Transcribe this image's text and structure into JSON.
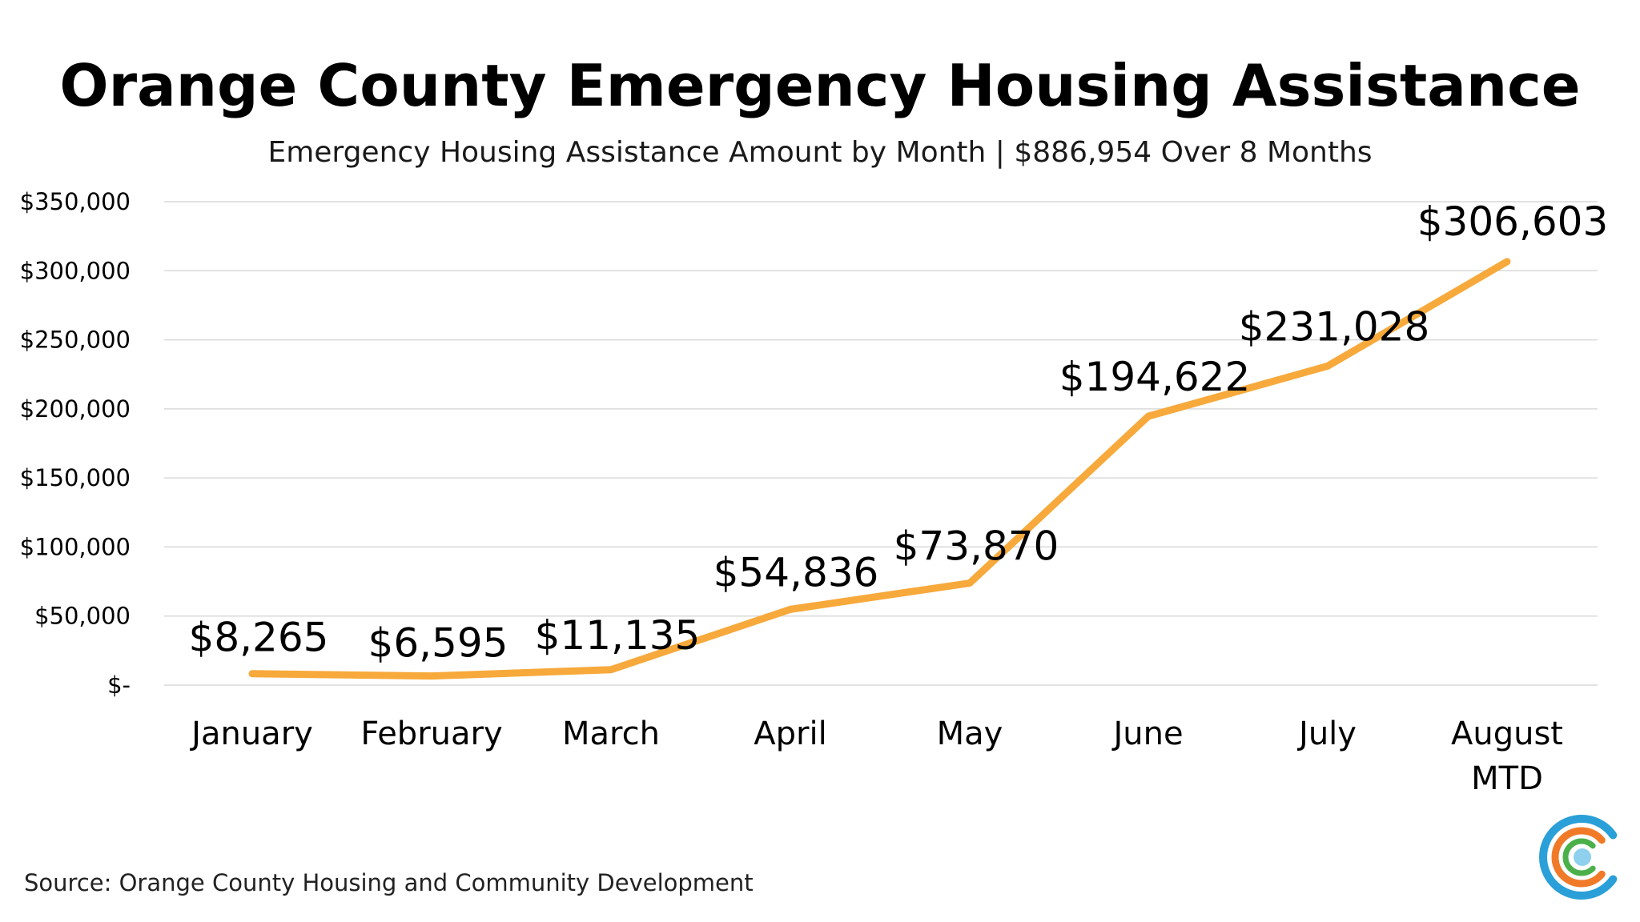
{
  "colors": {
    "line": "#f7a93b",
    "grid": "#d9d9d9",
    "logo_outer": "#2a9fd8",
    "logo_middle": "#f07a28",
    "logo_inner": "#4bb04a",
    "logo_dot": "#8fd0ee"
  },
  "footer": {
    "source": "Source: Orange County Housing and Community Development"
  },
  "logo": {
    "icon": "circular-c-logo-icon"
  },
  "chart_data": {
    "type": "line",
    "title": "Orange County Emergency Housing Assistance",
    "subtitle": "Emergency Housing Assistance Amount by Month | $886,954 Over 8 Months",
    "categories": [
      [
        "January"
      ],
      [
        "February"
      ],
      [
        "March"
      ],
      [
        "April"
      ],
      [
        "May"
      ],
      [
        "June"
      ],
      [
        "July"
      ],
      [
        "August",
        "MTD"
      ]
    ],
    "values": [
      8265,
      6595,
      11135,
      54836,
      73870,
      194622,
      231028,
      306603
    ],
    "data_labels": [
      "$8,265",
      "$6,595",
      "$11,135",
      "$54,836",
      "$73,870",
      "$194,622",
      "$231,028",
      "$306,603"
    ],
    "y_ticks": [
      {
        "value": 0,
        "label": "$-"
      },
      {
        "value": 50000,
        "label": "$50,000"
      },
      {
        "value": 100000,
        "label": "$100,000"
      },
      {
        "value": 150000,
        "label": "$150,000"
      },
      {
        "value": 200000,
        "label": "$200,000"
      },
      {
        "value": 250000,
        "label": "$250,000"
      },
      {
        "value": 300000,
        "label": "$300,000"
      },
      {
        "value": 350000,
        "label": "$350,000"
      }
    ],
    "ylim": [
      0,
      350000
    ],
    "grid": true,
    "legend": "none"
  }
}
